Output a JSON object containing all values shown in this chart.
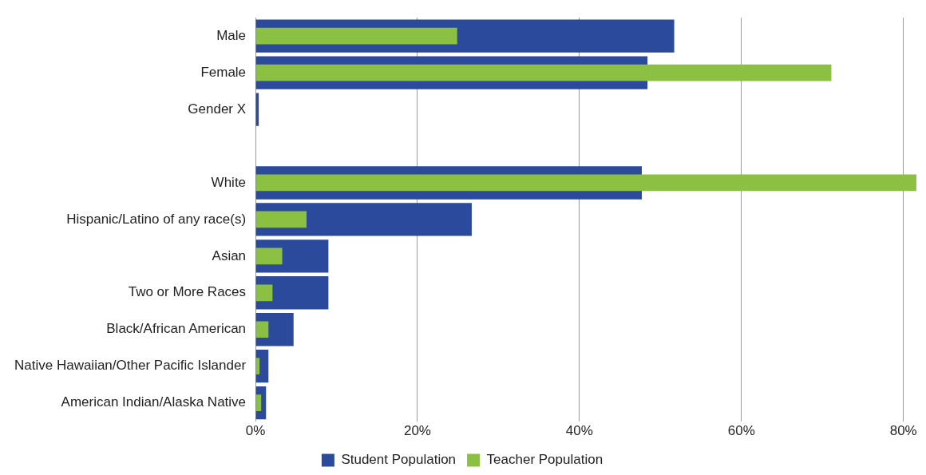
{
  "chart_data": {
    "type": "bar",
    "orientation": "horizontal",
    "categories": [
      "Male",
      "Female",
      "Gender X",
      null,
      "White",
      "Hispanic/Latino of any race(s)",
      "Asian",
      "Two or More Races",
      "Black/African American",
      "Native Hawaiian/Other Pacific Islander",
      "American Indian/Alaska Native"
    ],
    "series": [
      {
        "name": "Student Population",
        "color": "#2b4a9b",
        "values": [
          51.7,
          48.4,
          0.4,
          null,
          47.7,
          26.7,
          9.0,
          9.0,
          4.7,
          1.6,
          1.3
        ]
      },
      {
        "name": "Teacher Population",
        "color": "#8cc043",
        "values": [
          24.9,
          71.1,
          null,
          null,
          81.6,
          6.3,
          3.3,
          2.1,
          1.6,
          0.5,
          0.7
        ]
      }
    ],
    "xlim": [
      0,
      82
    ],
    "xticks": [
      {
        "value": 0,
        "label": "0%"
      },
      {
        "value": 20,
        "label": "20%"
      },
      {
        "value": 40,
        "label": "40%"
      },
      {
        "value": 60,
        "label": "60%"
      },
      {
        "value": 80,
        "label": "80%"
      }
    ],
    "grid": "x",
    "legend": "bottom"
  }
}
